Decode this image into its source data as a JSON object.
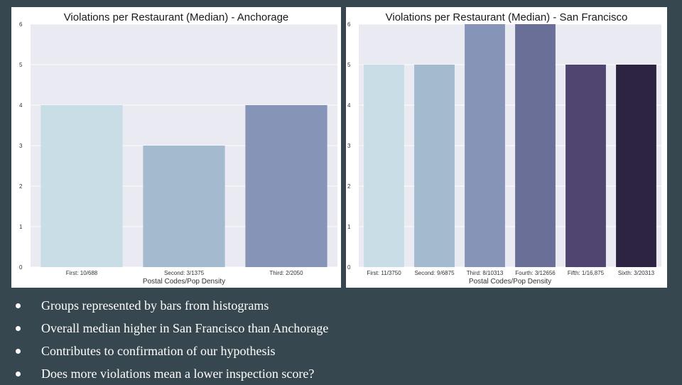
{
  "colors": {
    "background": "#37474f",
    "plot_bg": "#eaeaf2",
    "palette": [
      "#c9dde6",
      "#a3bacf",
      "#8694b8",
      "#6a6f98",
      "#4f4570",
      "#2c2440"
    ]
  },
  "chart_data": [
    {
      "type": "bar",
      "title": "Violations per Restaurant (Median) - Anchorage",
      "xlabel": "Postal Codes/Pop Density",
      "ylabel": "",
      "categories": [
        "First: 10/688",
        "Second: 3/1375",
        "Third: 2/2050"
      ],
      "values": [
        4,
        3,
        4
      ],
      "ylim": [
        0,
        6
      ],
      "yticks": [
        0,
        1,
        2,
        3,
        4,
        5,
        6
      ],
      "grid": true
    },
    {
      "type": "bar",
      "title": "Violations per Restaurant (Median) - San Francisco",
      "xlabel": "Postal Codes/Pop Density",
      "ylabel": "",
      "categories": [
        "First: 11/3750",
        "Second: 9/6875",
        "Third: 8/10313",
        "Fourth: 3/12656",
        "Fifth: 1/16,875",
        "Sixth: 3/20313"
      ],
      "values": [
        5,
        5,
        6,
        6,
        5,
        5
      ],
      "ylim": [
        0,
        6
      ],
      "yticks": [
        0,
        1,
        2,
        3,
        4,
        5,
        6
      ],
      "grid": true
    }
  ],
  "bullets": [
    "Groups represented by bars from histograms",
    "Overall median higher in San Francisco than Anchorage",
    "Contributes to confirmation of our hypothesis",
    "Does more violations mean a lower inspection score?"
  ]
}
